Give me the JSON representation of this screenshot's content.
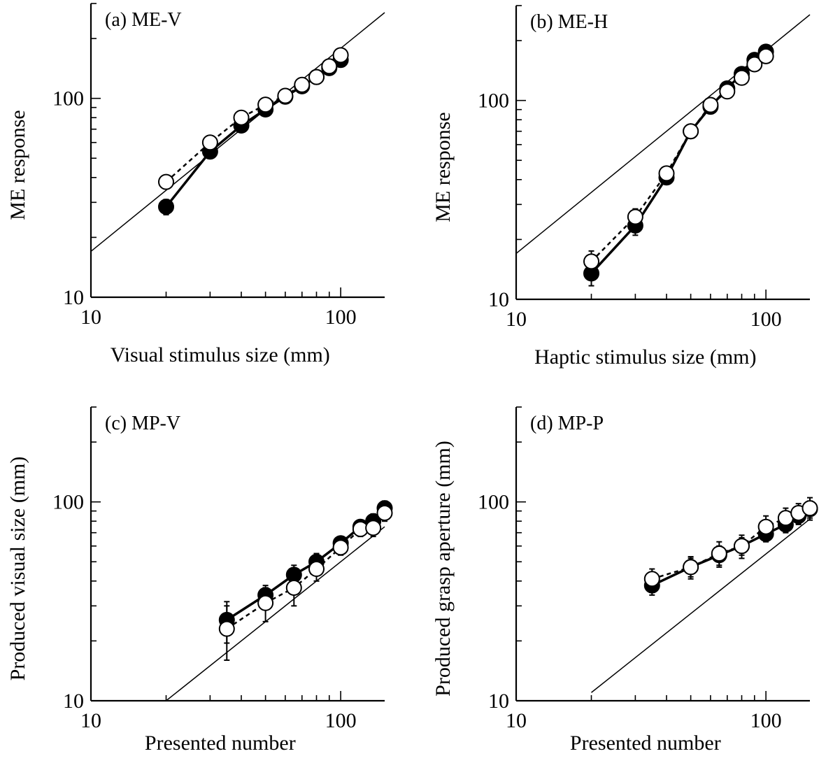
{
  "chart_data": [
    {
      "panel": "(a) ME-V",
      "type": "scatter",
      "title": "(a) ME-V",
      "xlabel": "Visual stimulus size (mm)",
      "ylabel": "ME response",
      "xscale": "log",
      "yscale": "log",
      "xlim": [
        10,
        150
      ],
      "ylim": [
        10,
        300
      ],
      "xticks": [
        10,
        100
      ],
      "xtick_labels": [
        "10",
        "100"
      ],
      "yticks": [
        10,
        100
      ],
      "ytick_labels": [
        "10",
        "100"
      ],
      "reference_line": {
        "x": [
          10,
          150
        ],
        "y": [
          17,
          270
        ]
      },
      "series": [
        {
          "marker": "filled-circle",
          "line": "solid",
          "x": [
            20,
            30,
            40,
            50,
            60,
            70,
            80,
            90,
            100
          ],
          "y": [
            28.5,
            54,
            73,
            88,
            102,
            115,
            128,
            142,
            156
          ],
          "err": [
            2.5,
            3,
            3,
            3,
            3,
            3,
            3,
            3,
            4
          ]
        },
        {
          "marker": "open-circle",
          "line": "dashed",
          "x": [
            20,
            30,
            40,
            50,
            60,
            70,
            80,
            90,
            100
          ],
          "y": [
            38,
            60,
            80,
            93,
            103,
            117,
            128,
            145,
            165
          ],
          "err": [
            2,
            3,
            3,
            3,
            3,
            3,
            3,
            3,
            4
          ]
        }
      ]
    },
    {
      "panel": "(b) ME-H",
      "type": "scatter",
      "title": "(b) ME-H",
      "xlabel": "Haptic stimulus size (mm)",
      "ylabel": "ME response",
      "xscale": "log",
      "yscale": "log",
      "xlim": [
        10,
        150
      ],
      "ylim": [
        10,
        300
      ],
      "xticks": [
        10,
        100
      ],
      "xtick_labels": [
        "10",
        "100"
      ],
      "yticks": [
        10,
        100
      ],
      "ytick_labels": [
        "10",
        "100"
      ],
      "reference_line": {
        "x": [
          10,
          150
        ],
        "y": [
          17,
          270
        ]
      },
      "series": [
        {
          "marker": "filled-circle",
          "line": "solid",
          "x": [
            20,
            30,
            40,
            50,
            60,
            70,
            80,
            90,
            100
          ],
          "y": [
            13.5,
            23.5,
            41,
            70,
            93,
            115,
            136,
            160,
            176
          ],
          "err": [
            1.8,
            2.5,
            3,
            3,
            3,
            4,
            5,
            6,
            7
          ]
        },
        {
          "marker": "open-circle",
          "line": "dashed",
          "x": [
            20,
            30,
            40,
            50,
            60,
            70,
            80,
            90,
            100
          ],
          "y": [
            15.5,
            26,
            43,
            70,
            95,
            111,
            130,
            152,
            167
          ],
          "err": [
            2,
            2.5,
            3,
            3,
            3,
            4,
            5,
            6,
            7
          ]
        }
      ]
    },
    {
      "panel": "(c) MP-V",
      "type": "scatter",
      "title": "(c) MP-V",
      "xlabel": "Presented number",
      "ylabel": "Produced visual size (mm)",
      "xscale": "log",
      "yscale": "log",
      "xlim": [
        10,
        150
      ],
      "ylim": [
        10,
        300
      ],
      "xticks": [
        10,
        100
      ],
      "xtick_labels": [
        "10",
        "100"
      ],
      "yticks": [
        10,
        100
      ],
      "ytick_labels": [
        "10",
        "100"
      ],
      "reference_line": {
        "x": [
          20,
          150
        ],
        "y": [
          10,
          75
        ]
      },
      "series": [
        {
          "marker": "filled-circle",
          "line": "solid",
          "x": [
            35,
            50,
            65,
            80,
            100,
            120,
            135,
            150
          ],
          "y": [
            25.5,
            34,
            43,
            50,
            62,
            75,
            80,
            93
          ],
          "err": [
            6,
            4,
            5,
            5,
            5,
            6,
            7,
            8
          ]
        },
        {
          "marker": "open-circle",
          "line": "dashed",
          "x": [
            35,
            50,
            65,
            80,
            100,
            120,
            135,
            150
          ],
          "y": [
            23,
            31,
            37,
            46,
            59,
            73,
            74,
            88
          ],
          "err": [
            7,
            6,
            7,
            6,
            5,
            6,
            7,
            8
          ]
        }
      ]
    },
    {
      "panel": "(d) MP-P",
      "type": "scatter",
      "title": "(d) MP-P",
      "xlabel": "Presented number",
      "ylabel": "Produced grasp aperture (mm)",
      "xscale": "log",
      "yscale": "log",
      "xlim": [
        10,
        150
      ],
      "ylim": [
        10,
        300
      ],
      "xticks": [
        10,
        100
      ],
      "xtick_labels": [
        "10",
        "100"
      ],
      "yticks": [
        10,
        100
      ],
      "ytick_labels": [
        "10",
        "100"
      ],
      "reference_line": {
        "x": [
          20,
          150
        ],
        "y": [
          11,
          82
        ]
      },
      "series": [
        {
          "marker": "filled-circle",
          "line": "solid",
          "x": [
            35,
            50,
            65,
            80,
            100,
            120,
            135,
            150
          ],
          "y": [
            38,
            47,
            54,
            60,
            69,
            77,
            85,
            92
          ],
          "err": [
            4,
            5,
            6,
            6,
            6,
            7,
            8,
            9
          ]
        },
        {
          "marker": "open-circle",
          "line": "dashed",
          "x": [
            35,
            50,
            65,
            80,
            100,
            120,
            135,
            150
          ],
          "y": [
            41,
            47,
            55,
            60,
            75,
            83,
            88,
            93
          ],
          "err": [
            5,
            6,
            8,
            8,
            10,
            10,
            10,
            12
          ]
        }
      ]
    }
  ]
}
